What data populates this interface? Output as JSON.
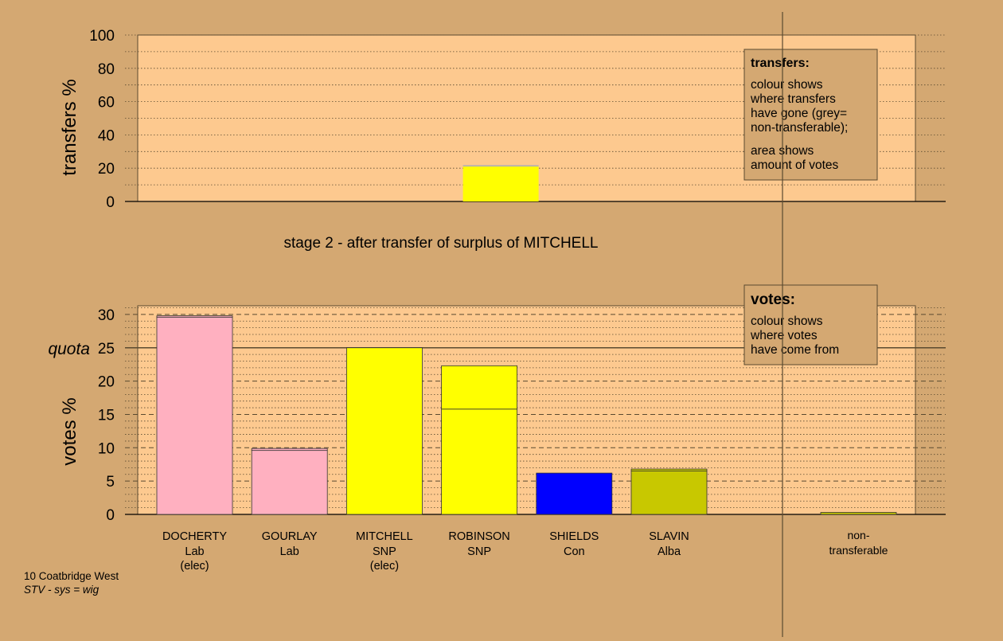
{
  "colors": {
    "background": "#d4a872",
    "panel": "#fdc98f",
    "lab": "#ffb0c0",
    "snp": "#ffff00",
    "con": "#0000ff",
    "alba": "#c8c800",
    "nontransferable": "#b0b0b0",
    "grid": "#5a4a30"
  },
  "stage_label": "stage 2 - after transfer of surplus of MITCHELL",
  "footer": {
    "line1": "10 Coatbridge West",
    "line2": "STV - sys = wig"
  },
  "chart_data": [
    {
      "type": "bar",
      "name": "transfers",
      "ylabel": "transfers %",
      "ylim": [
        0,
        100
      ],
      "yticks": [
        0,
        20,
        40,
        60,
        80,
        100
      ],
      "grid": "dotted",
      "bars": [
        {
          "candidate": "ROBINSON",
          "segments": [
            {
              "from": 0,
              "to": 21.0,
              "color_key": "snp"
            },
            {
              "from": 21.0,
              "to": 21.8,
              "color_key": "nontransferable"
            }
          ]
        }
      ],
      "legend": {
        "title": "transfers:",
        "lines1": [
          "colour shows",
          "where transfers",
          "have gone (grey=",
          "non-transferable);"
        ],
        "lines2": [
          "area shows",
          "amount of votes"
        ],
        "placement": "top-right"
      }
    },
    {
      "type": "bar",
      "name": "votes",
      "ylabel": "votes %",
      "ylim": [
        0,
        31
      ],
      "yticks": [
        0,
        5,
        10,
        15,
        20,
        25,
        30
      ],
      "quota": {
        "label": "quota",
        "value": 25
      },
      "grid": "dashed",
      "categories": [
        {
          "name": "DOCHERTY",
          "party": "Lab",
          "status": "(elec)"
        },
        {
          "name": "GOURLAY",
          "party": "Lab",
          "status": ""
        },
        {
          "name": "MITCHELL",
          "party": "SNP",
          "status": "(elec)"
        },
        {
          "name": "ROBINSON",
          "party": "SNP",
          "status": ""
        },
        {
          "name": "SHIELDS",
          "party": "Con",
          "status": ""
        },
        {
          "name": "SLAVIN",
          "party": "Alba",
          "status": ""
        }
      ],
      "bars": [
        {
          "candidate": "DOCHERTY",
          "segments": [
            {
              "from": 0,
              "to": 29.6,
              "color_key": "lab"
            },
            {
              "from": 29.6,
              "to": 29.8,
              "color_key": "lab"
            }
          ]
        },
        {
          "candidate": "GOURLAY",
          "segments": [
            {
              "from": 0,
              "to": 9.6,
              "color_key": "lab"
            },
            {
              "from": 9.6,
              "to": 9.9,
              "color_key": "lab"
            }
          ]
        },
        {
          "candidate": "MITCHELL",
          "segments": [
            {
              "from": 0,
              "to": 25.0,
              "color_key": "snp"
            }
          ]
        },
        {
          "candidate": "ROBINSON",
          "segments": [
            {
              "from": 0,
              "to": 15.8,
              "color_key": "snp"
            },
            {
              "from": 15.8,
              "to": 22.3,
              "color_key": "snp"
            }
          ]
        },
        {
          "candidate": "SHIELDS",
          "segments": [
            {
              "from": 0,
              "to": 6.2,
              "color_key": "con"
            }
          ]
        },
        {
          "candidate": "SLAVIN",
          "segments": [
            {
              "from": 0,
              "to": 6.5,
              "color_key": "alba"
            },
            {
              "from": 6.5,
              "to": 6.8,
              "color_key": "alba"
            }
          ]
        }
      ],
      "nontransferable": {
        "label": "non-\ntransferable",
        "label_lines": [
          "non-",
          "transferable"
        ],
        "value": 0.3,
        "color_key": "alba"
      },
      "legend": {
        "title": "votes:",
        "lines": [
          "colour shows",
          "where votes",
          "have come from"
        ],
        "placement": "top-right"
      }
    }
  ]
}
